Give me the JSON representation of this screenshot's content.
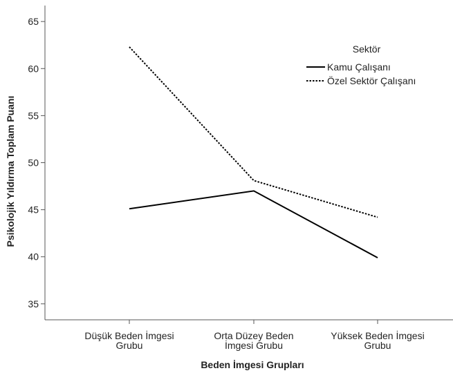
{
  "chart_data": {
    "type": "line",
    "xlabel": "Beden İmgesi Grupları",
    "ylabel": "Psikolojik Yıldırma Toplam Puanı",
    "categories": [
      [
        "Düşük Beden İmgesi",
        "Grubu"
      ],
      [
        "Orta Düzey Beden",
        "İmgesi Grubu"
      ],
      [
        "Yüksek Beden İmgesi",
        "Grubu"
      ]
    ],
    "ylim": [
      33.3,
      66.7
    ],
    "yticks": [
      35,
      40,
      45,
      50,
      55,
      60,
      65
    ],
    "grid": false,
    "legend": {
      "title": "Sektör",
      "position": "top-right"
    },
    "series": [
      {
        "name": "Kamu Çalışanı",
        "style": "solid",
        "color": "#000000",
        "values": [
          45.1,
          47.0,
          39.9
        ]
      },
      {
        "name": "Özel Sektör Çalışanı",
        "style": "dotted",
        "color": "#000000",
        "values": [
          62.3,
          48.1,
          44.2
        ]
      }
    ]
  }
}
